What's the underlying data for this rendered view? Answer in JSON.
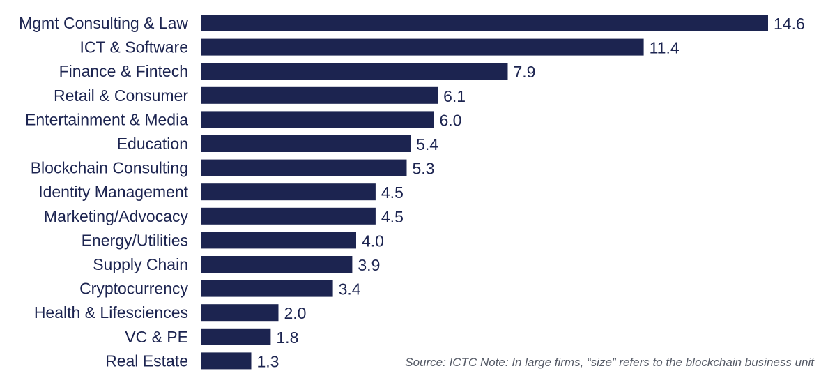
{
  "chart_data": {
    "type": "bar",
    "orientation": "horizontal",
    "categories": [
      "Mgmt Consulting & Law",
      "ICT & Software",
      "Finance & Fintech",
      "Retail & Consumer",
      "Entertainment & Media",
      "Education",
      "Blockchain Consulting",
      "Identity Management",
      "Marketing/Advocacy",
      "Energy/Utilities",
      "Supply Chain",
      "Cryptocurrency",
      "Health & Lifesciences",
      "VC & PE",
      "Real Estate"
    ],
    "values": [
      14.6,
      11.4,
      7.9,
      6.1,
      6.0,
      5.4,
      5.3,
      4.5,
      4.5,
      4.0,
      3.9,
      3.4,
      2.0,
      1.8,
      1.3
    ],
    "value_labels": [
      "14.6",
      "11.4",
      "7.9",
      "6.1",
      "6.0",
      "5.4",
      "5.3",
      "4.5",
      "4.5",
      "4.0",
      "3.9",
      "3.4",
      "2.0",
      "1.8",
      "1.3"
    ],
    "title": "",
    "xlabel": "",
    "ylabel": "",
    "xlim": [
      0,
      14.6
    ],
    "grid": false,
    "legend": "none",
    "bar_color": "#1c2450",
    "label_color": "#1c2450"
  },
  "source_note": "Source: ICTC  Note: In large firms, “size” refers to the blockchain business unit"
}
